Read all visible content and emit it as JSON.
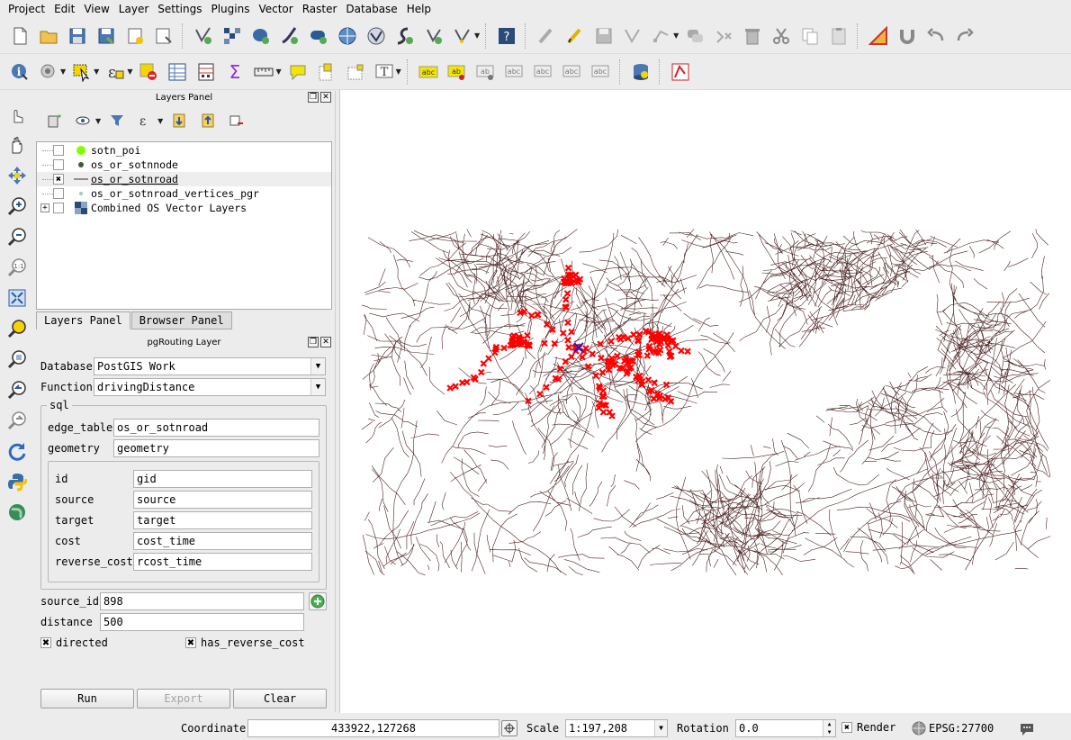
{
  "menu": [
    "Project",
    "Edit",
    "View",
    "Layer",
    "Settings",
    "Plugins",
    "Vector",
    "Raster",
    "Database",
    "Help"
  ],
  "layers_panel": {
    "title": "Layers Panel",
    "layers": [
      {
        "name": "sotn_poi",
        "checked": false
      },
      {
        "name": "os_or_sotnnode",
        "checked": false
      },
      {
        "name": "os_or_sotnroad",
        "checked": true
      },
      {
        "name": "os_or_sotnroad_vertices_pgr",
        "checked": false
      },
      {
        "name": "Combined OS Vector Layers",
        "checked": false
      }
    ],
    "tabs": [
      "Layers Panel",
      "Browser Panel"
    ]
  },
  "pgrouting": {
    "title": "pgRouting Layer",
    "database_label": "Database",
    "database_value": "PostGIS Work",
    "function_label": "Function",
    "function_value": "drivingDistance",
    "sql_group": "sql",
    "edge_table_label": "edge_table",
    "edge_table_value": "os_or_sotnroad",
    "geometry_label": "geometry",
    "geometry_value": "geometry",
    "id_label": "id",
    "id_value": "gid",
    "source_label": "source",
    "source_value": "source",
    "target_label": "target",
    "target_value": "target",
    "cost_label": "cost",
    "cost_value": "cost_time",
    "reverse_cost_label": "reverse_cost",
    "reverse_cost_value": "rcost_time",
    "source_id_label": "source_id",
    "source_id_value": "898",
    "distance_label": "distance",
    "distance_value": "500",
    "directed_label": "directed",
    "directed_checked": true,
    "has_reverse_cost_label": "has_reverse_cost",
    "has_reverse_cost_checked": true,
    "run_label": "Run",
    "export_label": "Export",
    "clear_label": "Clear"
  },
  "status": {
    "coordinate_label": "Coordinate",
    "coordinate_value": "433922,127268",
    "scale_label": "Scale",
    "scale_value": "1:197,208",
    "rotation_label": "Rotation",
    "rotation_value": "0.0",
    "render_label": "Render",
    "render_checked": true,
    "crs": "EPSG:27700"
  },
  "colors": {
    "road": "#4a2020",
    "result": "#ff0000",
    "start_marker": "#1f1fd0",
    "poi": "#7fff00"
  }
}
